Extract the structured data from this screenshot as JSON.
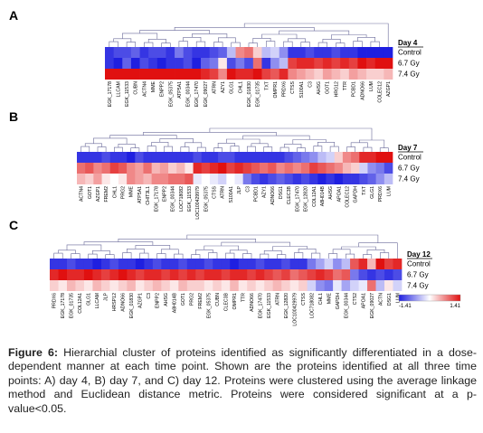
{
  "caption": {
    "label": "Figure 6:",
    "text": "Hierarchial cluster of proteins identified as significantly differentiated in a dose-dependent manner at each time point. Shown are the proteins identified at all three time points: A) day 4, B) day 7, and C) day 12. Proteins were clustered using the average linkage method and Euclidean distance metric. Proteins were considered significant at a p-value<0.05."
  },
  "colors": {
    "low": "#1f1fe0",
    "mid": "#ffffff",
    "high": "#e01010"
  },
  "scale": {
    "min_label": "-1.41",
    "max_label": "1.41"
  },
  "panels": [
    {
      "letter": "A",
      "day": "Day 4",
      "rows": [
        "Control",
        "6.7 Gy",
        "7.4 Gy"
      ],
      "genes": [
        "EGK_17178",
        "LLCAM",
        "EGK_11533",
        "CUBN",
        "ACTN4",
        "MME",
        "ENPP2",
        "EGK_05375",
        "ATP5A1",
        "EGK_00344",
        "EGK_17470",
        "EGK_09027",
        "ATRN",
        "AZY1",
        "GLG1",
        "CHL1",
        "EGK_01830",
        "EGK_01735",
        "TXT",
        "OMPR1",
        "PRDX6",
        "CTSS",
        "S100A1",
        "C3",
        "AHSG",
        "GOT1",
        "HRG12",
        "TTR",
        "PCBD1",
        "ADNO66",
        "LUM",
        "COLEC12",
        "AZGP1"
      ],
      "values": [
        [
          -0.9,
          -0.8,
          -0.8,
          -0.7,
          -0.9,
          -0.8,
          -0.8,
          -0.9,
          -0.6,
          -0.8,
          -0.9,
          -0.9,
          -0.8,
          -0.7,
          -0.3,
          0.5,
          0.6,
          0.2,
          -0.3,
          -0.2,
          -0.5,
          -0.9,
          -0.9,
          -0.8,
          -0.9,
          -0.9,
          -0.8,
          -0.9,
          -0.9,
          -1.0,
          -1.0,
          -1.0,
          -1.0
        ],
        [
          -0.9,
          -1.0,
          -0.7,
          -1.0,
          -0.8,
          -0.9,
          -1.0,
          -0.9,
          -0.9,
          -0.8,
          -1.0,
          -0.7,
          -0.6,
          0.1,
          -0.8,
          -0.6,
          -0.8,
          0.6,
          -0.9,
          -0.5,
          -0.3,
          0.8,
          0.9,
          0.9,
          0.8,
          0.9,
          0.8,
          0.9,
          0.8,
          1.0,
          0.9,
          1.0,
          1.0
        ],
        [
          1.0,
          1.0,
          1.0,
          1.0,
          1.0,
          1.0,
          1.0,
          1.0,
          1.0,
          1.0,
          1.0,
          0.9,
          0.8,
          0.5,
          1.0,
          0.9,
          0.9,
          1.0,
          0.8,
          0.7,
          0.9,
          0.5,
          0.4,
          0.3,
          0.2,
          0.4,
          0.3,
          0.2,
          0.4,
          0.3,
          0.2,
          0.2,
          0.3
        ]
      ]
    },
    {
      "letter": "B",
      "day": "Day 7",
      "rows": [
        "Control",
        "6.7 Gy",
        "7.4 Gy"
      ],
      "genes": [
        "ACTN4",
        "GOT1",
        "AZGP1",
        "FREM2",
        "CHL1",
        "PRG2",
        "MME",
        "ATP5A1",
        "CHIT3L1",
        "EGK_17178",
        "ENPP2",
        "EGK_00344",
        "LOC718082",
        "EGK_11533",
        "LOC100429979",
        "EGK_05375",
        "CTSS",
        "ATRN",
        "S100A1",
        "JLP",
        "C3",
        "PCBD1",
        "AZY1",
        "ADNO66",
        "DSG1",
        "CLEC3B",
        "EGK_17470",
        "EGK_12820",
        "COL12A1",
        "A8H014B",
        "AHSG",
        "APOA1",
        "COLEC12",
        "GAPDH",
        "TXT",
        "GLG1",
        "PRDX6",
        "LUM"
      ],
      "values": [
        [
          -0.9,
          -0.9,
          -0.9,
          -0.8,
          -0.9,
          -0.9,
          -1.0,
          -0.8,
          -0.9,
          -0.9,
          -0.9,
          -0.9,
          -0.9,
          -0.9,
          -0.8,
          -0.9,
          -0.9,
          -0.8,
          -0.8,
          -0.9,
          -0.9,
          -0.9,
          -0.9,
          -0.9,
          -0.9,
          -0.8,
          -0.7,
          -0.6,
          -0.5,
          -0.3,
          -0.2,
          0.2,
          0.5,
          0.6,
          0.9,
          0.9,
          1.0,
          1.0
        ],
        [
          0.6,
          0.7,
          0.5,
          0.6,
          0.8,
          0.7,
          0.5,
          0.4,
          0.6,
          0.3,
          0.4,
          0.2,
          0.3,
          0.1,
          0.9,
          0.8,
          0.9,
          1.0,
          0.8,
          0.9,
          0.8,
          0.7,
          0.6,
          0.7,
          0.5,
          0.6,
          0.5,
          0.6,
          0.8,
          0.7,
          0.6,
          0.5,
          0.3,
          0.2,
          -0.2,
          -0.5,
          -0.6,
          -0.8
        ],
        [
          0.3,
          0.2,
          0.4,
          0.1,
          0.0,
          0.1,
          0.5,
          0.4,
          0.3,
          0.5,
          0.5,
          0.6,
          0.6,
          0.7,
          -0.1,
          0.0,
          -0.1,
          -0.2,
          0.0,
          -0.1,
          -0.6,
          -0.8,
          -0.9,
          -0.8,
          -0.7,
          -0.8,
          -0.9,
          -0.8,
          -0.9,
          -1.0,
          -0.9,
          -1.0,
          -0.9,
          -0.9,
          -0.8,
          -0.7,
          -0.5,
          -0.3
        ]
      ]
    },
    {
      "letter": "C",
      "day": "Day 12",
      "rows": [
        "Control",
        "6.7 Gy",
        "7.4 Gy"
      ],
      "genes": [
        "PRDX6",
        "EGK_17178",
        "EGK_01735",
        "COL12A1",
        "GLG1",
        "LLCAM",
        "JLP",
        "HRSP12",
        "ADNO66",
        "EGK_01830",
        "AZGP1",
        "C3",
        "ENPP2",
        "AHSG",
        "A8H014B",
        "GOT1",
        "PRG2",
        "FREM2",
        "EGK_05375",
        "CUBN",
        "CLEC3B",
        "OMPR1",
        "TTR",
        "ADNO66",
        "EGK_17470",
        "EGK_11533",
        "ATRN",
        "EGK_12820",
        "LOC100429979",
        "CTSS",
        "LOC718082",
        "CHL1",
        "MME",
        "GAPDH",
        "EGK_00344",
        "CTS2",
        "APOA1",
        "EGK_09027",
        "ACTN",
        "DSG1",
        "LUM"
      ],
      "values": [
        [
          -0.9,
          -0.9,
          -0.8,
          -0.9,
          -0.9,
          -1.0,
          -0.9,
          -0.8,
          -0.9,
          -0.9,
          -1.0,
          -0.9,
          -0.8,
          -0.9,
          -0.9,
          -0.8,
          -0.9,
          -0.9,
          -0.8,
          -0.9,
          -0.9,
          -1.0,
          -0.9,
          -0.9,
          -0.8,
          -0.9,
          -0.9,
          -0.8,
          -0.9,
          -0.9,
          -0.6,
          -0.4,
          -0.2,
          -0.5,
          -0.3,
          0.7,
          0.9,
          0.3,
          1.0,
          0.8,
          0.9
        ],
        [
          0.9,
          1.0,
          0.9,
          0.9,
          1.0,
          0.9,
          0.8,
          0.9,
          1.0,
          0.9,
          0.8,
          0.9,
          0.9,
          0.8,
          0.9,
          0.8,
          0.9,
          0.8,
          0.9,
          0.9,
          0.8,
          0.9,
          0.9,
          0.8,
          0.9,
          0.8,
          0.7,
          0.8,
          0.6,
          0.7,
          0.8,
          0.9,
          0.8,
          0.6,
          0.7,
          -0.6,
          -0.8,
          -0.9,
          -0.8,
          -0.9,
          -0.8
        ],
        [
          0.2,
          0.1,
          0.3,
          0.2,
          0.1,
          0.3,
          0.2,
          0.1,
          0.2,
          0.3,
          0.1,
          0.2,
          0.3,
          0.2,
          0.1,
          0.3,
          0.2,
          0.2,
          0.1,
          0.2,
          0.1,
          0.3,
          0.1,
          0.2,
          0.1,
          0.2,
          0.3,
          0.2,
          0.1,
          0.2,
          -0.2,
          -0.5,
          -0.6,
          -0.1,
          -0.4,
          -0.2,
          -0.1,
          0.6,
          -0.3,
          0.1,
          -0.2
        ]
      ]
    }
  ]
}
